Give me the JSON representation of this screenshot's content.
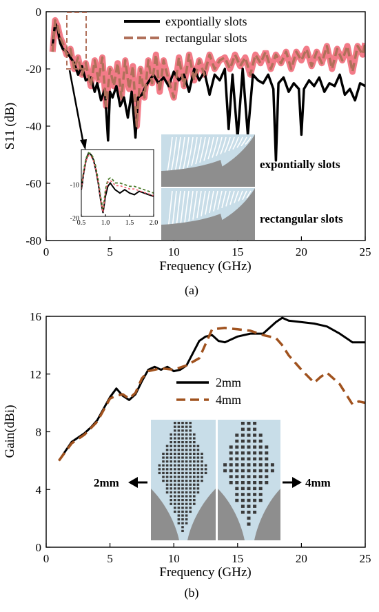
{
  "figure": {
    "panel_a_caption": "(a)",
    "panel_b_caption": "(b)",
    "inset_a_labels": [
      "expontially slots",
      "rectangular slots"
    ],
    "inset_b_labels": [
      "2mm",
      "4mm"
    ]
  },
  "colors": {
    "black_series": "#000000",
    "red_fill": "#f05a6a",
    "brown_dash": "#b0705a",
    "gain_dash": "#a0521e",
    "antenna_bg": "#c8dde8",
    "antenna_metal": "#8e8e8e"
  },
  "chart_data": [
    {
      "type": "line",
      "panel": "a",
      "xlabel": "Frequency (GHz)",
      "ylabel": "S11 (dB)",
      "xlim": [
        0,
        25
      ],
      "ylim": [
        -80,
        0
      ],
      "xticks": [
        "0",
        "5",
        "10",
        "15",
        "20",
        "25"
      ],
      "yticks": [
        "0",
        "-20",
        "-40",
        "-60",
        "-80"
      ],
      "legend_position": "top-right",
      "series": [
        {
          "name": "expontially slots",
          "style": "solid",
          "x": [
            0.5,
            0.7,
            0.9,
            1.1,
            1.3,
            1.6,
            1.9,
            2.2,
            2.5,
            2.8,
            3.1,
            3.5,
            3.8,
            4.0,
            4.3,
            4.6,
            4.85,
            5.0,
            5.2,
            5.5,
            5.8,
            6.1,
            6.4,
            6.7,
            7.0,
            7.2,
            7.5,
            7.8,
            8.1,
            8.4,
            8.8,
            9.2,
            9.6,
            10.0,
            10.4,
            10.8,
            11.2,
            11.6,
            12.0,
            12.4,
            12.8,
            13.2,
            13.6,
            14.0,
            14.3,
            14.6,
            15.0,
            15.4,
            15.8,
            16.2,
            16.6,
            17.0,
            17.4,
            17.8,
            18.0,
            18.2,
            18.6,
            19.0,
            19.4,
            19.8,
            20.0,
            20.2,
            20.6,
            21.0,
            21.4,
            21.8,
            22.2,
            22.6,
            23.0,
            23.4,
            23.8,
            24.2,
            24.6,
            25.0
          ],
          "values": [
            -12,
            -4,
            -6,
            -11,
            -13,
            -14,
            -16,
            -18,
            -22,
            -19,
            -24,
            -23,
            -28,
            -25,
            -31,
            -27,
            -45,
            -28,
            -30,
            -26,
            -33,
            -30,
            -37,
            -28,
            -44,
            -30,
            -29,
            -26,
            -24,
            -22,
            -25,
            -23,
            -26,
            -21,
            -24,
            -22,
            -28,
            -20,
            -24,
            -21,
            -29,
            -22,
            -24,
            -20,
            -41,
            -22,
            -44,
            -20,
            -43,
            -22,
            -24,
            -25,
            -22,
            -27,
            -52,
            -25,
            -23,
            -28,
            -25,
            -27,
            -43,
            -27,
            -24,
            -26,
            -23,
            -28,
            -25,
            -26,
            -22,
            -29,
            -27,
            -31,
            -25,
            -26
          ]
        },
        {
          "name": "rectangular slots",
          "style": "dashed",
          "x": [
            0.5,
            0.7,
            0.9,
            1.1,
            1.3,
            1.6,
            1.9,
            2.2,
            2.5,
            2.8,
            3.1,
            3.5,
            3.8,
            4.1,
            4.4,
            4.7,
            5.0,
            5.3,
            5.6,
            5.9,
            6.2,
            6.5,
            6.8,
            7.1,
            7.4,
            7.7,
            8.0,
            8.3,
            8.6,
            8.9,
            9.2,
            9.6,
            10.0,
            10.4,
            10.8,
            11.2,
            11.6,
            12.0,
            12.4,
            12.8,
            13.2,
            13.6,
            14.0,
            14.4,
            14.8,
            15.2,
            15.6,
            16.0,
            16.4,
            16.8,
            17.2,
            17.6,
            18.0,
            18.4,
            18.8,
            19.2,
            19.6,
            20.0,
            20.4,
            20.8,
            21.2,
            21.6,
            22.0,
            22.4,
            22.8,
            23.2,
            23.6,
            24.0,
            24.4,
            24.8,
            25.0
          ],
          "values": [
            -14,
            -3,
            -5,
            -9,
            -11,
            -15,
            -13,
            -20,
            -16,
            -22,
            -18,
            -26,
            -17,
            -24,
            -16,
            -33,
            -20,
            -26,
            -18,
            -30,
            -17,
            -27,
            -19,
            -40,
            -20,
            -30,
            -17,
            -25,
            -15,
            -28,
            -17,
            -24,
            -30,
            -16,
            -26,
            -15,
            -24,
            -17,
            -22,
            -15,
            -20,
            -17,
            -16,
            -20,
            -15,
            -19,
            -16,
            -22,
            -15,
            -18,
            -14,
            -20,
            -15,
            -18,
            -14,
            -20,
            -14,
            -17,
            -13,
            -19,
            -14,
            -18,
            -12,
            -20,
            -13,
            -17,
            -12,
            -21,
            -12,
            -15,
            -11
          ]
        }
      ],
      "inset": {
        "xlim": [
          0.5,
          2.0
        ],
        "ylim": [
          -20,
          0
        ],
        "xticks": [
          "0.5",
          "1.0",
          "1.5",
          "2.0"
        ],
        "yticks": [
          "-10",
          "-20"
        ],
        "x": [
          0.5,
          0.55,
          0.6,
          0.65,
          0.7,
          0.75,
          0.8,
          0.85,
          0.9,
          0.95,
          1.0,
          1.05,
          1.1,
          1.15,
          1.2,
          1.3,
          1.4,
          1.5,
          1.6,
          1.7,
          1.8,
          1.9,
          2.0
        ],
        "series": [
          {
            "name": "expontially slots",
            "values": [
              -12,
              -7,
              -3,
              -1,
              -1.5,
              -3,
              -6,
              -10,
              -15,
              -19,
              -14,
              -11,
              -10,
              -11,
              -12,
              -13,
              -12,
              -13,
              -13.5,
              -12.5,
              -13,
              -13.5,
              -14
            ]
          },
          {
            "name": "rectangular slots",
            "values": [
              -11,
              -6,
              -2.5,
              -1,
              -1.2,
              -2.5,
              -5,
              -9,
              -14,
              -18,
              -12,
              -9,
              -8.5,
              -9,
              -10,
              -10,
              -10.5,
              -11,
              -11,
              -11.5,
              -12,
              -12.5,
              -13
            ]
          }
        ]
      }
    },
    {
      "type": "line",
      "panel": "b",
      "xlabel": "Frequency (GHz)",
      "ylabel": "Gain(dBi)",
      "xlim": [
        0,
        25
      ],
      "ylim": [
        0,
        16
      ],
      "xticks": [
        "0",
        "5",
        "10",
        "15",
        "20",
        "25"
      ],
      "yticks": [
        "0",
        "4",
        "8",
        "12",
        "16"
      ],
      "legend_position": "center",
      "series": [
        {
          "name": "2mm",
          "style": "solid",
          "x": [
            1,
            2,
            3,
            3.5,
            4,
            5,
            5.5,
            6,
            6.5,
            7,
            7.5,
            8,
            8.5,
            9,
            9.5,
            10,
            10.5,
            11,
            12,
            12.5,
            13,
            13.5,
            14,
            15,
            16,
            17,
            18,
            18.5,
            19,
            20,
            21,
            22,
            23,
            24,
            25
          ],
          "values": [
            6.0,
            7.3,
            7.9,
            8.3,
            8.8,
            10.4,
            11.0,
            10.5,
            10.2,
            10.6,
            11.5,
            12.3,
            12.5,
            12.3,
            12.5,
            12.2,
            12.3,
            12.6,
            14.3,
            14.6,
            14.7,
            14.3,
            14.2,
            14.6,
            14.8,
            14.8,
            15.6,
            15.9,
            15.7,
            15.6,
            15.5,
            15.3,
            14.8,
            14.2,
            14.2
          ]
        },
        {
          "name": "4mm",
          "style": "dashed",
          "x": [
            1,
            2,
            3,
            4,
            5,
            5.5,
            6,
            6.5,
            7,
            7.5,
            8,
            9,
            10,
            11,
            12,
            13,
            14,
            15,
            16,
            17,
            18,
            18.5,
            19,
            20,
            21,
            21.5,
            22,
            23,
            24,
            24.5,
            25
          ],
          "values": [
            6.0,
            7.2,
            7.8,
            8.7,
            10.3,
            10.5,
            10.6,
            10.3,
            10.7,
            11.7,
            12.2,
            12.4,
            12.3,
            12.6,
            13.1,
            15.1,
            15.2,
            15.1,
            15.0,
            14.7,
            14.5,
            14.0,
            13.3,
            12.3,
            11.4,
            11.8,
            12.1,
            11.3,
            9.9,
            10.1,
            10.0
          ]
        }
      ]
    }
  ]
}
